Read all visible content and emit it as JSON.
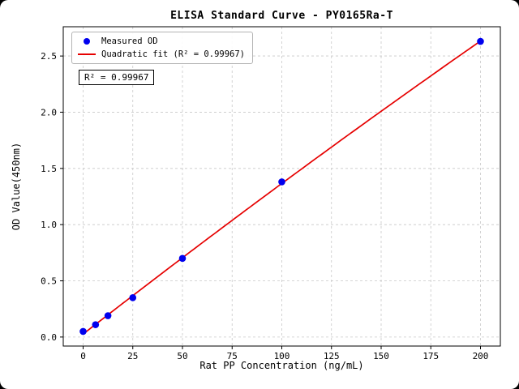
{
  "chart_data": {
    "type": "scatter",
    "title": "ELISA Standard Curve - PY0165Ra-T",
    "xlabel": "Rat PP Concentration (ng/mL)",
    "ylabel": "OD Value(450nm)",
    "xlim": [
      -10,
      210
    ],
    "ylim": [
      -0.08,
      2.76
    ],
    "xticks": [
      0,
      25,
      50,
      75,
      100,
      125,
      150,
      175,
      200
    ],
    "yticks": [
      0.0,
      0.5,
      1.0,
      1.5,
      2.0,
      2.5
    ],
    "grid": true,
    "series": [
      {
        "name": "Measured OD",
        "type": "scatter",
        "color": "#0000ee",
        "x": [
          0,
          6.25,
          12.5,
          25,
          50,
          100,
          200
        ],
        "y": [
          0.05,
          0.11,
          0.19,
          0.35,
          0.7,
          1.38,
          2.63
        ]
      },
      {
        "name": "Quadratic fit (R² = 0.99967)",
        "type": "line",
        "color": "#e60000"
      }
    ],
    "legend": {
      "position": "upper-left",
      "entries": [
        "Measured OD",
        "Quadratic fit (R² = 0.99967)"
      ]
    },
    "annotation": "R² = 0.99967",
    "grid_color": "#c8c8c8"
  }
}
